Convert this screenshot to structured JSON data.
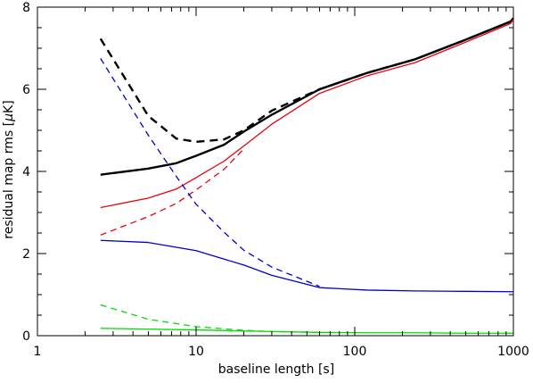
{
  "chart_data": {
    "type": "line",
    "xlabel": "baseline length [s]",
    "ylabel_prefix": "residual map rms [",
    "ylabel_mu": "μ",
    "ylabel_suffix": "K]",
    "x_scale": "log",
    "xlim": [
      1,
      1000
    ],
    "ylim": [
      0,
      8
    ],
    "grid": false,
    "x_ticks": [
      {
        "value": 1,
        "label": "1"
      },
      {
        "value": 10,
        "label": "10"
      },
      {
        "value": 100,
        "label": "100"
      },
      {
        "value": 1000,
        "label": "1000"
      }
    ],
    "y_ticks": [
      {
        "value": 0,
        "label": "0"
      },
      {
        "value": 2,
        "label": "2"
      },
      {
        "value": 4,
        "label": "4"
      },
      {
        "value": 6,
        "label": "6"
      },
      {
        "value": 8,
        "label": "8"
      }
    ],
    "series": [
      {
        "color": "#000000",
        "style": "solid",
        "width": 2.4,
        "x": [
          2.5,
          5,
          7.5,
          10,
          15,
          20,
          30,
          60,
          120,
          240,
          480,
          960,
          1000
        ],
        "y": [
          3.92,
          4.07,
          4.2,
          4.38,
          4.65,
          4.97,
          5.38,
          6.0,
          6.4,
          6.73,
          7.18,
          7.65,
          7.73
        ]
      },
      {
        "color": "#000000",
        "style": "dashed",
        "width": 2.4,
        "x": [
          2.5,
          5,
          7.5,
          10,
          15,
          20,
          30,
          60,
          120,
          240,
          480,
          960,
          1000
        ],
        "y": [
          7.23,
          5.35,
          4.8,
          4.72,
          4.78,
          5.0,
          5.48,
          6.0,
          6.4,
          6.73,
          7.18,
          7.65,
          7.73
        ]
      },
      {
        "color": "#e8000b",
        "style": "solid",
        "width": 1.3,
        "x": [
          2.5,
          5,
          7.5,
          10,
          15,
          20,
          30,
          60,
          120,
          240,
          480,
          960,
          1000
        ],
        "y": [
          3.12,
          3.35,
          3.57,
          3.85,
          4.25,
          4.62,
          5.15,
          5.9,
          6.33,
          6.65,
          7.12,
          7.6,
          7.7
        ]
      },
      {
        "color": "#e8000b",
        "style": "dashed",
        "width": 1.3,
        "x": [
          2.5,
          5,
          7.5,
          10,
          15,
          20
        ],
        "y": [
          2.45,
          2.9,
          3.22,
          3.55,
          4.05,
          4.55
        ]
      },
      {
        "color": "#0000cc",
        "style": "solid",
        "width": 1.3,
        "x": [
          2.5,
          5,
          10,
          20,
          30,
          60,
          120,
          240,
          480,
          1000
        ],
        "y": [
          2.32,
          2.27,
          2.07,
          1.72,
          1.47,
          1.17,
          1.11,
          1.09,
          1.08,
          1.07
        ]
      },
      {
        "color": "#0000cc",
        "style": "dashed",
        "width": 1.3,
        "x": [
          2.5,
          5,
          7.5,
          10,
          15,
          20,
          30,
          60
        ],
        "y": [
          6.75,
          4.88,
          3.88,
          3.2,
          2.52,
          2.08,
          1.67,
          1.2
        ]
      },
      {
        "color": "#00dd00",
        "style": "solid",
        "width": 1.3,
        "x": [
          2.5,
          10,
          30,
          60,
          120,
          240,
          480,
          1000
        ],
        "y": [
          0.18,
          0.14,
          0.1,
          0.08,
          0.07,
          0.07,
          0.06,
          0.06
        ]
      },
      {
        "color": "#00dd00",
        "style": "dashed",
        "width": 1.3,
        "x": [
          2.5,
          5,
          10,
          20,
          30,
          60
        ],
        "y": [
          0.75,
          0.4,
          0.22,
          0.13,
          0.1,
          0.08
        ]
      }
    ]
  }
}
